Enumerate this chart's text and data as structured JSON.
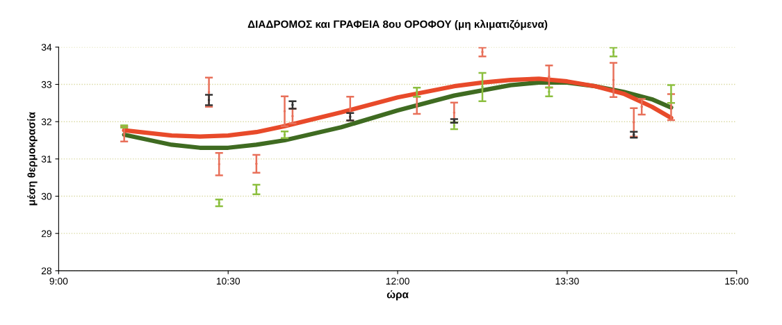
{
  "chart_data": {
    "type": "scatter",
    "title": "ΔΙΑΔΡΟΜΟΣ και ΓΡΑΦΕΙΑ 8ου ΟΡΟΦΟΥ (μη κλιματιζόμενα)",
    "xlabel": "ώρα",
    "ylabel": "μέση θερμοκρασία",
    "xlim": [
      9,
      15
    ],
    "xticks": [
      {
        "value": 9,
        "label": "9:00"
      },
      {
        "value": 10.5,
        "label": "10:30"
      },
      {
        "value": 12,
        "label": "12:00"
      },
      {
        "value": 13.5,
        "label": "13:30"
      },
      {
        "value": 15,
        "label": "15:00"
      }
    ],
    "ylim": [
      28,
      34
    ],
    "yticks": [
      28,
      29,
      30,
      31,
      32,
      33,
      34
    ],
    "grid": "y",
    "series": [
      {
        "color": "#e8705a",
        "x": [
          9.58,
          10.33,
          10.42,
          10.75,
          11.0,
          11.07,
          11.58,
          12.17,
          12.5,
          12.75,
          13.34,
          13.91,
          14.09,
          14.16,
          14.42
        ],
        "values": [
          31.67,
          32.79,
          30.86,
          30.87,
          32.28,
          32.15,
          32.35,
          32.44,
          32.24,
          33.87,
          33.21,
          33.12,
          31.98,
          32.4,
          32.39
        ],
        "errors": [
          0.2,
          0.39,
          0.3,
          0.24,
          0.4,
          0.2,
          0.32,
          0.23,
          0.27,
          0.12,
          0.3,
          0.46,
          0.38,
          0.21,
          0.35
        ]
      },
      {
        "color": "#8cbf3f",
        "x": [
          9.58,
          10.42,
          10.75,
          11.0,
          12.17,
          12.5,
          12.75,
          13.34,
          13.91,
          14.42
        ],
        "values": [
          31.87,
          29.82,
          30.18,
          31.65,
          32.79,
          31.89,
          32.93,
          32.8,
          33.87,
          32.74
        ],
        "errors": [
          0.03,
          0.09,
          0.13,
          0.09,
          0.12,
          0.09,
          0.38,
          0.12,
          0.12,
          0.24
        ]
      },
      {
        "color": "#333333",
        "x": [
          10.33,
          11.07,
          11.58,
          12.5,
          14.09
        ],
        "values": [
          32.58,
          32.45,
          32.13,
          32.02,
          31.65
        ],
        "errors": [
          0.14,
          0.1,
          0.1,
          0.05,
          0.08
        ]
      },
      {
        "type": "line",
        "color": "#3f6b21",
        "x": [
          9.58,
          10.0,
          10.25,
          10.5,
          10.75,
          11.0,
          11.5,
          12.0,
          12.5,
          13.0,
          13.25,
          13.5,
          13.75,
          14.0,
          14.25,
          14.42
        ],
        "values": [
          31.65,
          31.38,
          31.3,
          31.3,
          31.38,
          31.5,
          31.85,
          32.3,
          32.7,
          32.98,
          33.05,
          33.05,
          32.95,
          32.8,
          32.6,
          32.38
        ]
      },
      {
        "type": "line",
        "color": "#e84a2a",
        "x": [
          9.58,
          10.0,
          10.25,
          10.5,
          10.75,
          11.0,
          11.5,
          12.0,
          12.5,
          12.75,
          13.0,
          13.25,
          13.5,
          13.75,
          14.0,
          14.25,
          14.42
        ],
        "values": [
          31.77,
          31.63,
          31.6,
          31.63,
          31.72,
          31.88,
          32.25,
          32.65,
          32.95,
          33.05,
          33.12,
          33.15,
          33.08,
          32.95,
          32.75,
          32.4,
          32.1
        ]
      }
    ]
  }
}
